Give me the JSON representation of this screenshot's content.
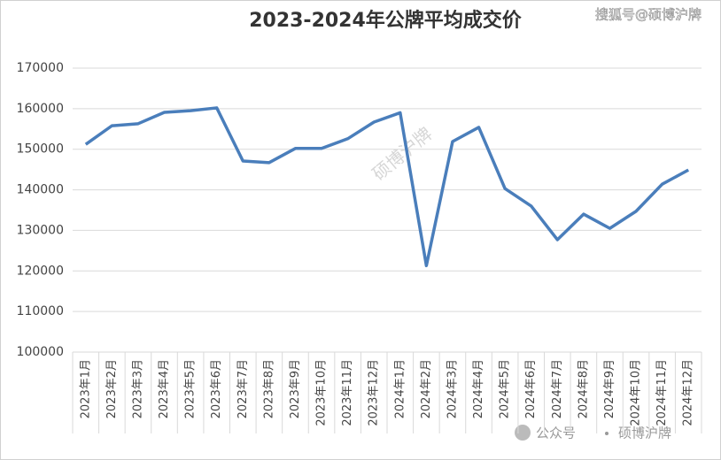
{
  "chart_data": {
    "type": "line",
    "title": "2023-2024年公牌平均成交价",
    "categories": [
      "2023年1月",
      "2023年2月",
      "2023年3月",
      "2023年4月",
      "2023年5月",
      "2023年6月",
      "2023年7月",
      "2023年8月",
      "2023年9月",
      "2023年10月",
      "2023年11月",
      "2023年12月",
      "2024年1月",
      "2024年2月",
      "2024年3月",
      "2024年4月",
      "2024年5月",
      "2024年6月",
      "2024年7月",
      "2024年8月",
      "2024年9月",
      "2024年10月",
      "2024年11月",
      "2024年12月"
    ],
    "values": [
      151200,
      155800,
      156300,
      159100,
      159500,
      160200,
      147100,
      146700,
      150200,
      150200,
      152600,
      156700,
      159000,
      121300,
      151900,
      155400,
      140300,
      136000,
      127700,
      134000,
      130500,
      134700,
      141400,
      144900
    ],
    "color": "#4a7ebb",
    "ylim": [
      100000,
      170000
    ],
    "yticks": [
      100000,
      110000,
      120000,
      130000,
      140000,
      150000,
      160000,
      170000
    ],
    "grid": true,
    "annotations": [
      "搜狐号@硕博沪牌",
      "硕博沪牌",
      "公众号",
      "硕博沪牌"
    ]
  }
}
